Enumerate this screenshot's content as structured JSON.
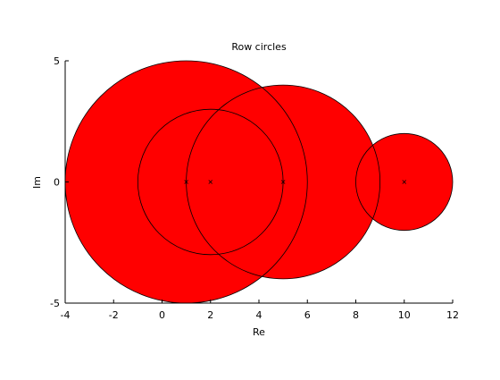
{
  "chart_data": {
    "type": "scatter",
    "title": "Row circles",
    "xlabel": "Re",
    "ylabel": "Im",
    "xlim": [
      -4,
      12
    ],
    "ylim": [
      -5,
      5
    ],
    "x_ticks": [
      -4,
      -2,
      0,
      2,
      4,
      6,
      8,
      10,
      12
    ],
    "y_ticks": [
      -5,
      0,
      5
    ],
    "grid": false,
    "legend": "none",
    "circles": [
      {
        "center": [
          1,
          0
        ],
        "radius": 5
      },
      {
        "center": [
          5,
          0
        ],
        "radius": 4
      },
      {
        "center": [
          10,
          0
        ],
        "radius": 2
      },
      {
        "center": [
          2,
          0
        ],
        "radius": 3
      }
    ],
    "fill_color": "#ff0000",
    "edge_color": "#000000",
    "center_marker": "x"
  }
}
